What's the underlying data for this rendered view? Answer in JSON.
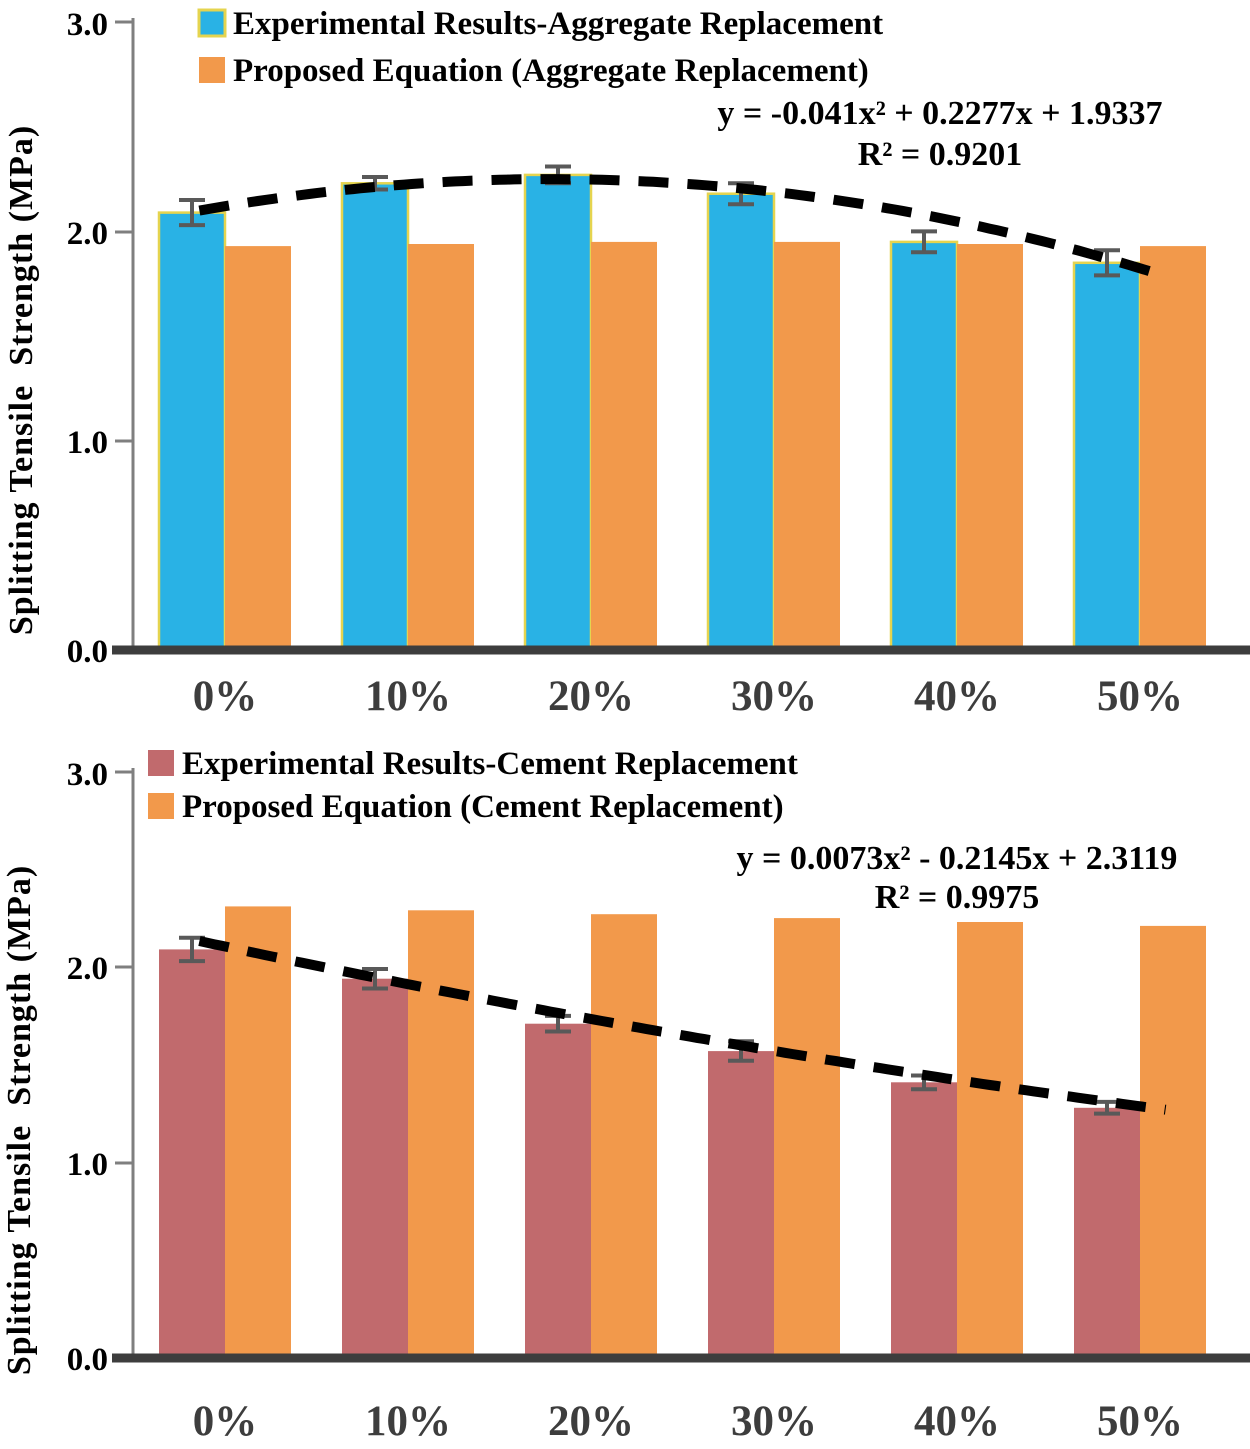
{
  "chart_data": [
    {
      "type": "bar",
      "title": "",
      "categories": [
        "0%",
        "10%",
        "20%",
        "30%",
        "40%",
        "50%"
      ],
      "series": [
        {
          "name": "Experimental Results-Aggregate Replacement",
          "values": [
            2.09,
            2.23,
            2.27,
            2.18,
            1.95,
            1.85
          ],
          "errors": [
            0.06,
            0.03,
            0.04,
            0.05,
            0.05,
            0.06
          ],
          "color": "#29B2E5",
          "border_color": "#E5D44F",
          "error_color": "#595959"
        },
        {
          "name": "Proposed Equation (Aggregate Replacement)",
          "values": [
            1.93,
            1.94,
            1.95,
            1.95,
            1.94,
            1.93
          ],
          "color": "#F2994B"
        }
      ],
      "trendline": {
        "label_line1": "y = -0.041x² + 0.2277x + 1.9337",
        "label_line2": "R² = 0.9201",
        "a": -0.041,
        "b": 0.2277,
        "c": 1.9337,
        "x_domain": [
          1,
          6
        ],
        "style": "dashed",
        "color": "#000000"
      },
      "ylabel": "Splitting Tensile  Strength (MPa)",
      "xlabel": "",
      "yticks": [
        "0.0",
        "1.0",
        "2.0",
        "3.0"
      ],
      "ylim": [
        0,
        3
      ],
      "grid": false,
      "legend_position": "top-left"
    },
    {
      "type": "bar",
      "title": "",
      "categories": [
        "0%",
        "10%",
        "20%",
        "30%",
        "40%",
        "50%"
      ],
      "series": [
        {
          "name": "Experimental Results-Cement Replacement",
          "values": [
            2.09,
            1.94,
            1.71,
            1.57,
            1.41,
            1.28
          ],
          "errors": [
            0.06,
            0.05,
            0.04,
            0.05,
            0.035,
            0.03
          ],
          "color": "#C16A6D",
          "error_color": "#595959"
        },
        {
          "name": "Proposed Equation (Cement Replacement)",
          "values": [
            2.31,
            2.29,
            2.27,
            2.25,
            2.23,
            2.21
          ],
          "color": "#F2994B"
        }
      ],
      "trendline": {
        "label_line1": "y = 0.0073x² - 0.2145x + 2.3119",
        "label_line2": "R² = 0.9975",
        "a": 0.0073,
        "b": -0.2145,
        "c": 2.3119,
        "x_domain": [
          1,
          6
        ],
        "style": "dashed",
        "color": "#000000"
      },
      "ylabel": "Splitting Tensile  Strength (MPa)",
      "xlabel": "",
      "yticks": [
        "0.0",
        "1.0",
        "2.0",
        "3.0"
      ],
      "ylim": [
        0,
        3
      ],
      "grid": false,
      "legend_position": "top-left"
    }
  ]
}
